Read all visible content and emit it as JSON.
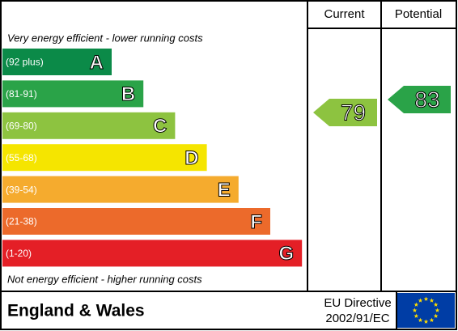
{
  "chart_data": {
    "type": "epc",
    "top_note": "Very energy efficient - lower running costs",
    "bottom_note": "Not energy efficient - higher running costs",
    "bands": [
      {
        "range": "(92 plus)",
        "letter": "A",
        "color": "#0b8a48"
      },
      {
        "range": "(81-91)",
        "letter": "B",
        "color": "#2aa348"
      },
      {
        "range": "(69-80)",
        "letter": "C",
        "color": "#8dc340"
      },
      {
        "range": "(55-68)",
        "letter": "D",
        "color": "#f5e500"
      },
      {
        "range": "(39-54)",
        "letter": "E",
        "color": "#f5ab2e"
      },
      {
        "range": "(21-38)",
        "letter": "F",
        "color": "#ec6a2b"
      },
      {
        "range": "(1-20)",
        "letter": "G",
        "color": "#e41f26"
      }
    ],
    "series": [
      {
        "name": "Current",
        "color": "#8dc340",
        "values": [
          79
        ]
      },
      {
        "name": "Potential",
        "color": "#2aa348",
        "values": [
          83
        ]
      }
    ],
    "footer": {
      "region": "England & Wales",
      "directive": "EU Directive",
      "code": "2002/91/EC"
    }
  }
}
